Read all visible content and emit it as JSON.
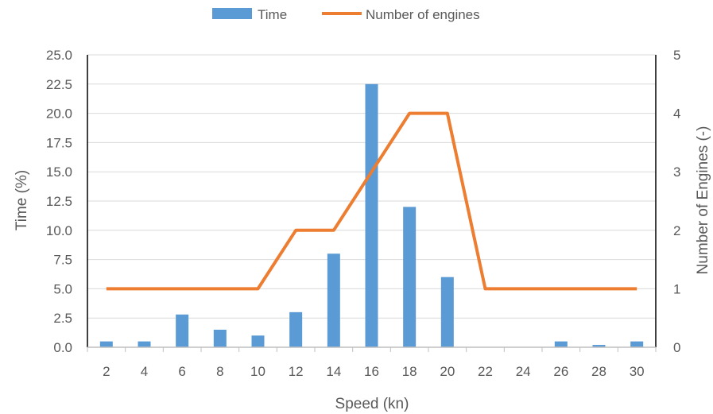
{
  "chart_data": {
    "type": "bar",
    "categories": [
      "2",
      "4",
      "6",
      "8",
      "10",
      "12",
      "14",
      "16",
      "18",
      "20",
      "22",
      "24",
      "26",
      "28",
      "30"
    ],
    "series": [
      {
        "name": "Time",
        "kind": "bar",
        "axis": "left",
        "color": "#5B9BD5",
        "values": [
          0.5,
          0.5,
          2.8,
          1.5,
          1.0,
          3.0,
          8.0,
          22.5,
          12.0,
          6.0,
          0.0,
          0.0,
          0.5,
          0.2,
          0.5
        ]
      },
      {
        "name": "Number of engines",
        "kind": "line",
        "axis": "right",
        "color": "#ED7D31",
        "values": [
          1,
          1,
          1,
          1,
          1,
          2,
          2,
          3,
          4,
          4,
          1,
          1,
          1,
          1,
          1
        ]
      }
    ],
    "xlabel": "Speed (kn)",
    "ylabel": "Time (%)",
    "y2label": "Number of Engines (-)",
    "ylim": [
      0,
      25
    ],
    "y2lim": [
      0,
      5
    ],
    "yticks": [
      "0.0",
      "2.5",
      "5.0",
      "7.5",
      "10.0",
      "12.5",
      "15.0",
      "17.5",
      "20.0",
      "22.5",
      "25.0"
    ],
    "y2ticks": [
      "0",
      "1",
      "2",
      "3",
      "4",
      "5"
    ],
    "grid": true,
    "legend_position": "top-center"
  }
}
